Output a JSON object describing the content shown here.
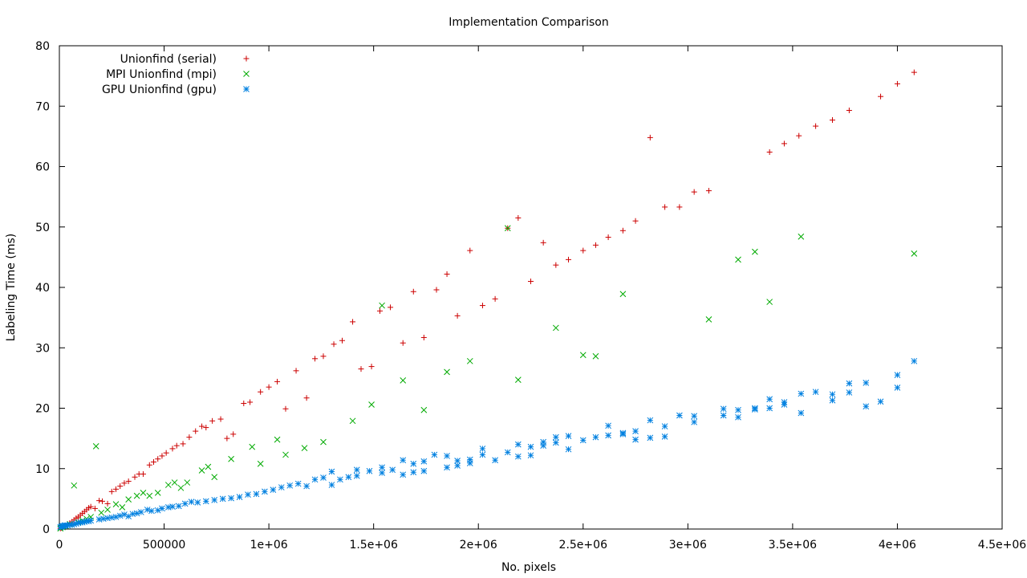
{
  "chart_data": {
    "type": "scatter",
    "title": "Implementation Comparison",
    "xlabel": "No. pixels",
    "ylabel": "Labeling Time (ms)",
    "xlim": [
      0,
      4500000
    ],
    "ylim": [
      0,
      80
    ],
    "x_ticks": [
      0,
      500000,
      1000000,
      1500000,
      2000000,
      2500000,
      3000000,
      3500000,
      4000000,
      4500000
    ],
    "x_tick_labels": [
      "0",
      "500000",
      "1e+06",
      "1.5e+06",
      "2e+06",
      "2.5e+06",
      "3e+06",
      "3.5e+06",
      "4e+06",
      "4.5e+06"
    ],
    "y_ticks": [
      0,
      10,
      20,
      30,
      40,
      50,
      60,
      70,
      80
    ],
    "y_tick_labels": [
      "0",
      "10",
      "20",
      "30",
      "40",
      "50",
      "60",
      "70",
      "80"
    ],
    "grid": false,
    "legend_position": "top-left",
    "series": [
      {
        "name": "Unionfind (serial)",
        "marker": "plus",
        "color": "#cc0000",
        "points": [
          [
            5000,
            0.1
          ],
          [
            10000,
            0.2
          ],
          [
            15000,
            0.3
          ],
          [
            20000,
            0.4
          ],
          [
            30000,
            0.6
          ],
          [
            40000,
            0.8
          ],
          [
            50000,
            1.0
          ],
          [
            60000,
            1.2
          ],
          [
            70000,
            1.5
          ],
          [
            80000,
            1.8
          ],
          [
            90000,
            2.0
          ],
          [
            100000,
            2.3
          ],
          [
            110000,
            2.6
          ],
          [
            120000,
            2.9
          ],
          [
            130000,
            3.2
          ],
          [
            140000,
            3.5
          ],
          [
            150000,
            3.7
          ],
          [
            170000,
            3.4
          ],
          [
            190000,
            4.7
          ],
          [
            205000,
            4.6
          ],
          [
            230000,
            4.2
          ],
          [
            250000,
            6.2
          ],
          [
            270000,
            6.6
          ],
          [
            290000,
            7.1
          ],
          [
            310000,
            7.6
          ],
          [
            330000,
            7.9
          ],
          [
            360000,
            8.6
          ],
          [
            380000,
            9.1
          ],
          [
            400000,
            9.1
          ],
          [
            430000,
            10.6
          ],
          [
            450000,
            11.1
          ],
          [
            470000,
            11.6
          ],
          [
            490000,
            12.1
          ],
          [
            510000,
            12.6
          ],
          [
            540000,
            13.3
          ],
          [
            560000,
            13.8
          ],
          [
            590000,
            14.1
          ],
          [
            620000,
            15.2
          ],
          [
            650000,
            16.2
          ],
          [
            680000,
            17.0
          ],
          [
            700000,
            16.8
          ],
          [
            730000,
            17.9
          ],
          [
            770000,
            18.2
          ],
          [
            800000,
            15.0
          ],
          [
            830000,
            15.7
          ],
          [
            880000,
            20.8
          ],
          [
            910000,
            21.0
          ],
          [
            960000,
            22.7
          ],
          [
            1000000,
            23.5
          ],
          [
            1040000,
            24.4
          ],
          [
            1080000,
            19.9
          ],
          [
            1130000,
            26.2
          ],
          [
            1180000,
            21.7
          ],
          [
            1220000,
            28.2
          ],
          [
            1260000,
            28.6
          ],
          [
            1310000,
            30.6
          ],
          [
            1350000,
            31.2
          ],
          [
            1400000,
            34.3
          ],
          [
            1440000,
            26.5
          ],
          [
            1490000,
            26.9
          ],
          [
            1530000,
            36.1
          ],
          [
            1580000,
            36.7
          ],
          [
            1640000,
            30.8
          ],
          [
            1690000,
            39.3
          ],
          [
            1740000,
            31.7
          ],
          [
            1800000,
            39.6
          ],
          [
            1850000,
            42.2
          ],
          [
            1900000,
            35.3
          ],
          [
            1960000,
            46.1
          ],
          [
            2020000,
            37.0
          ],
          [
            2080000,
            38.1
          ],
          [
            2140000,
            49.8
          ],
          [
            2190000,
            51.5
          ],
          [
            2250000,
            41.0
          ],
          [
            2310000,
            47.4
          ],
          [
            2370000,
            43.7
          ],
          [
            2430000,
            44.6
          ],
          [
            2500000,
            46.1
          ],
          [
            2560000,
            47.0
          ],
          [
            2620000,
            48.3
          ],
          [
            2690000,
            49.4
          ],
          [
            2750000,
            51.0
          ],
          [
            2820000,
            64.8
          ],
          [
            2890000,
            53.3
          ],
          [
            2960000,
            53.3
          ],
          [
            3030000,
            55.8
          ],
          [
            3100000,
            56.0
          ],
          [
            3390000,
            62.4
          ],
          [
            3460000,
            63.8
          ],
          [
            3530000,
            65.1
          ],
          [
            3610000,
            66.7
          ],
          [
            3690000,
            67.7
          ],
          [
            3770000,
            69.3
          ],
          [
            3920000,
            71.6
          ],
          [
            4000000,
            73.7
          ],
          [
            4080000,
            75.6
          ]
        ]
      },
      {
        "name": "MPI Unionfind (mpi)",
        "marker": "cross",
        "color": "#00aa00",
        "points": [
          [
            5000,
            0.1
          ],
          [
            15000,
            0.3
          ],
          [
            30000,
            0.5
          ],
          [
            50000,
            0.8
          ],
          [
            70000,
            7.2
          ],
          [
            90000,
            1.1
          ],
          [
            110000,
            1.4
          ],
          [
            130000,
            1.7
          ],
          [
            150000,
            2.0
          ],
          [
            175000,
            13.7
          ],
          [
            200000,
            2.7
          ],
          [
            230000,
            3.2
          ],
          [
            270000,
            4.1
          ],
          [
            300000,
            3.6
          ],
          [
            330000,
            4.9
          ],
          [
            370000,
            5.5
          ],
          [
            400000,
            6.0
          ],
          [
            430000,
            5.5
          ],
          [
            470000,
            6.0
          ],
          [
            520000,
            7.3
          ],
          [
            550000,
            7.7
          ],
          [
            580000,
            6.8
          ],
          [
            610000,
            7.7
          ],
          [
            680000,
            9.7
          ],
          [
            710000,
            10.3
          ],
          [
            740000,
            8.6
          ],
          [
            820000,
            11.6
          ],
          [
            920000,
            13.6
          ],
          [
            960000,
            10.8
          ],
          [
            1040000,
            14.8
          ],
          [
            1080000,
            12.3
          ],
          [
            1170000,
            13.4
          ],
          [
            1260000,
            14.4
          ],
          [
            1400000,
            17.9
          ],
          [
            1490000,
            20.6
          ],
          [
            1540000,
            37.0
          ],
          [
            1640000,
            24.6
          ],
          [
            1740000,
            19.7
          ],
          [
            1850000,
            26.0
          ],
          [
            1960000,
            27.8
          ],
          [
            2140000,
            49.8
          ],
          [
            2190000,
            24.7
          ],
          [
            2370000,
            33.3
          ],
          [
            2500000,
            28.8
          ],
          [
            2560000,
            28.6
          ],
          [
            2690000,
            38.9
          ],
          [
            3100000,
            34.7
          ],
          [
            3240000,
            44.6
          ],
          [
            3320000,
            45.9
          ],
          [
            3390000,
            37.6
          ],
          [
            3540000,
            48.4
          ],
          [
            4080000,
            45.6
          ]
        ]
      },
      {
        "name": "GPU Unionfind (gpu)",
        "marker": "star",
        "color": "#0080e0",
        "points": [
          [
            5000,
            0.3
          ],
          [
            10000,
            0.4
          ],
          [
            15000,
            0.5
          ],
          [
            20000,
            0.5
          ],
          [
            25000,
            0.6
          ],
          [
            30000,
            0.6
          ],
          [
            40000,
            0.6
          ],
          [
            50000,
            0.7
          ],
          [
            60000,
            0.7
          ],
          [
            70000,
            0.8
          ],
          [
            80000,
            0.9
          ],
          [
            90000,
            1.0
          ],
          [
            100000,
            1.1
          ],
          [
            110000,
            1.1
          ],
          [
            120000,
            1.2
          ],
          [
            130000,
            1.3
          ],
          [
            140000,
            1.3
          ],
          [
            150000,
            1.4
          ],
          [
            190000,
            1.6
          ],
          [
            210000,
            1.7
          ],
          [
            230000,
            1.8
          ],
          [
            250000,
            1.9
          ],
          [
            270000,
            2.0
          ],
          [
            290000,
            2.2
          ],
          [
            310000,
            2.4
          ],
          [
            330000,
            2.1
          ],
          [
            350000,
            2.5
          ],
          [
            370000,
            2.6
          ],
          [
            390000,
            2.8
          ],
          [
            420000,
            3.2
          ],
          [
            440000,
            3.0
          ],
          [
            470000,
            3.1
          ],
          [
            490000,
            3.4
          ],
          [
            520000,
            3.6
          ],
          [
            540000,
            3.7
          ],
          [
            570000,
            3.8
          ],
          [
            600000,
            4.2
          ],
          [
            630000,
            4.5
          ],
          [
            660000,
            4.4
          ],
          [
            700000,
            4.6
          ],
          [
            740000,
            4.8
          ],
          [
            780000,
            5.0
          ],
          [
            820000,
            5.1
          ],
          [
            860000,
            5.3
          ],
          [
            900000,
            5.7
          ],
          [
            940000,
            5.8
          ],
          [
            980000,
            6.2
          ],
          [
            1020000,
            6.5
          ],
          [
            1060000,
            6.9
          ],
          [
            1100000,
            7.2
          ],
          [
            1140000,
            7.5
          ],
          [
            1180000,
            7.1
          ],
          [
            1220000,
            8.2
          ],
          [
            1260000,
            8.5
          ],
          [
            1300000,
            7.3
          ],
          [
            1300000,
            9.5
          ],
          [
            1340000,
            8.2
          ],
          [
            1380000,
            8.6
          ],
          [
            1420000,
            8.8
          ],
          [
            1420000,
            9.8
          ],
          [
            1480000,
            9.6
          ],
          [
            1540000,
            10.2
          ],
          [
            1540000,
            9.3
          ],
          [
            1590000,
            9.8
          ],
          [
            1640000,
            9.0
          ],
          [
            1640000,
            11.4
          ],
          [
            1690000,
            9.4
          ],
          [
            1690000,
            10.8
          ],
          [
            1740000,
            9.6
          ],
          [
            1740000,
            11.2
          ],
          [
            1790000,
            12.3
          ],
          [
            1850000,
            10.2
          ],
          [
            1850000,
            12.1
          ],
          [
            1900000,
            10.5
          ],
          [
            1900000,
            11.3
          ],
          [
            1960000,
            10.9
          ],
          [
            1960000,
            11.5
          ],
          [
            2020000,
            12.3
          ],
          [
            2020000,
            13.3
          ],
          [
            2080000,
            11.4
          ],
          [
            2140000,
            12.7
          ],
          [
            2190000,
            12.0
          ],
          [
            2190000,
            14.0
          ],
          [
            2250000,
            12.2
          ],
          [
            2250000,
            13.6
          ],
          [
            2310000,
            13.8
          ],
          [
            2310000,
            14.4
          ],
          [
            2370000,
            14.3
          ],
          [
            2370000,
            15.2
          ],
          [
            2430000,
            13.2
          ],
          [
            2430000,
            15.4
          ],
          [
            2500000,
            14.7
          ],
          [
            2560000,
            15.2
          ],
          [
            2620000,
            15.5
          ],
          [
            2620000,
            17.1
          ],
          [
            2690000,
            15.7
          ],
          [
            2690000,
            15.9
          ],
          [
            2750000,
            14.8
          ],
          [
            2750000,
            16.2
          ],
          [
            2820000,
            15.1
          ],
          [
            2820000,
            18.0
          ],
          [
            2890000,
            15.3
          ],
          [
            2890000,
            17.0
          ],
          [
            2960000,
            18.8
          ],
          [
            3030000,
            17.7
          ],
          [
            3030000,
            18.7
          ],
          [
            3170000,
            18.8
          ],
          [
            3170000,
            19.9
          ],
          [
            3240000,
            18.5
          ],
          [
            3240000,
            19.7
          ],
          [
            3320000,
            19.8
          ],
          [
            3320000,
            20.0
          ],
          [
            3390000,
            20.0
          ],
          [
            3390000,
            21.5
          ],
          [
            3460000,
            20.6
          ],
          [
            3460000,
            21.0
          ],
          [
            3540000,
            19.2
          ],
          [
            3540000,
            22.4
          ],
          [
            3610000,
            22.7
          ],
          [
            3690000,
            21.3
          ],
          [
            3690000,
            22.3
          ],
          [
            3770000,
            22.6
          ],
          [
            3770000,
            24.1
          ],
          [
            3850000,
            20.3
          ],
          [
            3850000,
            24.2
          ],
          [
            3920000,
            21.1
          ],
          [
            4000000,
            23.4
          ],
          [
            4000000,
            25.5
          ],
          [
            4080000,
            27.8
          ]
        ]
      }
    ]
  }
}
